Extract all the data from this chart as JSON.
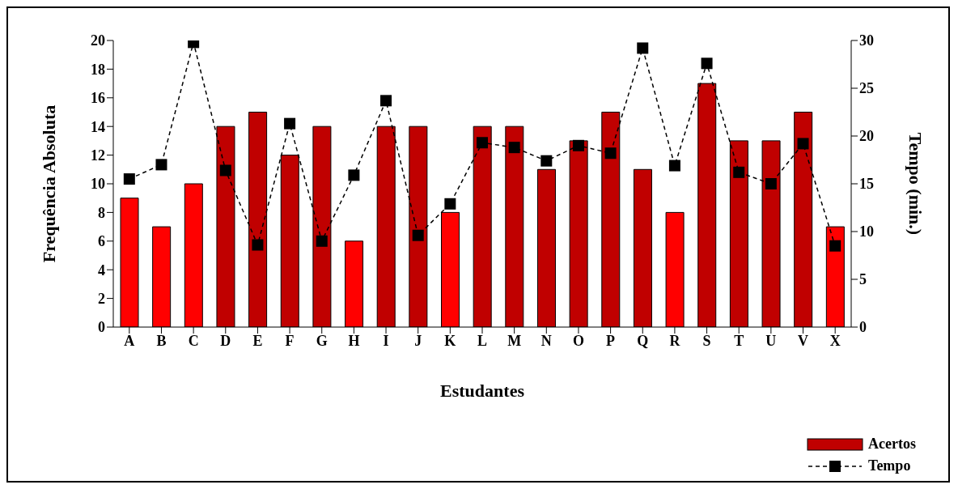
{
  "chart_data": {
    "type": "bar",
    "xlabel": "Estudantes",
    "ylabel": "Frequência  Absoluta",
    "y2label": "Tempo  (min.)",
    "categories": [
      "A",
      "B",
      "C",
      "D",
      "E",
      "F",
      "G",
      "H",
      "I",
      "J",
      "K",
      "L",
      "M",
      "N",
      "O",
      "P",
      "Q",
      "R",
      "S",
      "T",
      "U",
      "V",
      "X"
    ],
    "series": [
      {
        "name": "Acertos",
        "color": "#c00000",
        "colors": [
          "#ff0000",
          "#ff0000",
          "#ff0000",
          "#c00000",
          "#c00000",
          "#c00000",
          "#c00000",
          "#ff0000",
          "#c00000",
          "#c00000",
          "#ff0000",
          "#c00000",
          "#c00000",
          "#c00000",
          "#c00000",
          "#c00000",
          "#c00000",
          "#ff0000",
          "#c00000",
          "#c00000",
          "#c00000",
          "#c00000",
          "#ff0000"
        ],
        "values": [
          9,
          7,
          10,
          14,
          15,
          12,
          14,
          6,
          14,
          14,
          8,
          14,
          14,
          11,
          13,
          15,
          11,
          8,
          17,
          13,
          13,
          15,
          7
        ]
      },
      {
        "name": "Tempo",
        "type": "line",
        "axis": "y2",
        "color": "#000000",
        "marker": "square",
        "line_style": "dashed",
        "values": [
          15.5,
          17,
          29.8,
          16.4,
          8.6,
          21.3,
          9,
          15.9,
          23.7,
          9.6,
          12.9,
          19.3,
          18.8,
          17.4,
          19,
          18.2,
          29.2,
          16.9,
          27.6,
          16.2,
          15,
          19.2,
          8.5
        ]
      }
    ],
    "ylim": [
      0,
      20
    ],
    "yticks": [
      0,
      2,
      4,
      6,
      8,
      10,
      12,
      14,
      16,
      18,
      20
    ],
    "y2lim": [
      0,
      30
    ],
    "y2ticks": [
      0,
      5,
      10,
      15,
      20,
      25,
      30
    ],
    "grid": false,
    "legend": "bottom right"
  }
}
